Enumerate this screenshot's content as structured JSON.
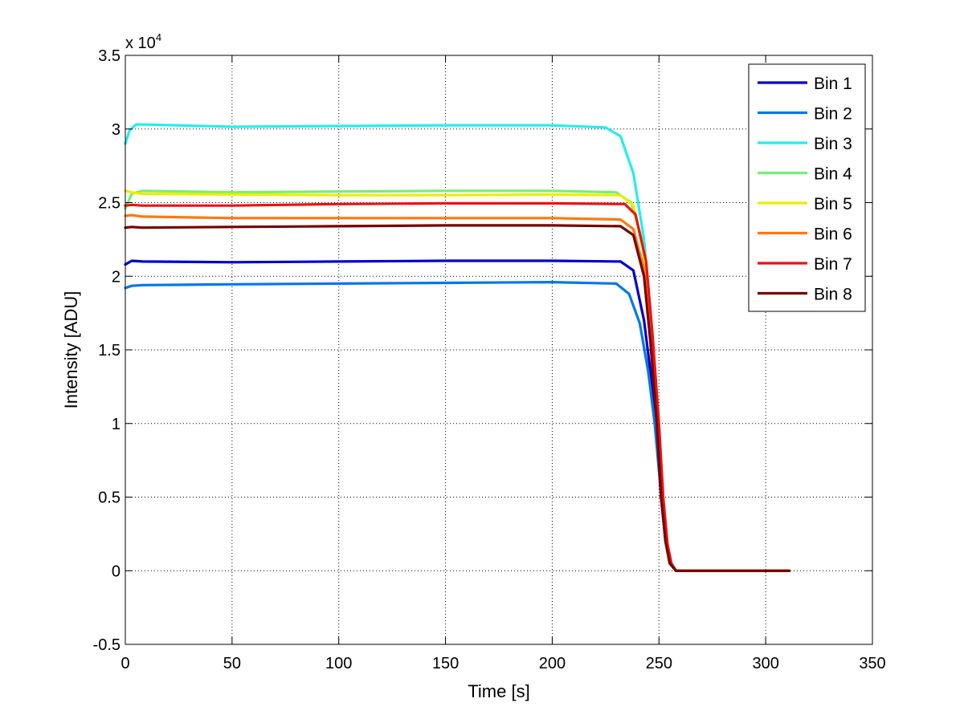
{
  "chart_data": {
    "type": "line",
    "xlabel": "Time [s]",
    "ylabel": "Intensity [ADU]",
    "xlim": [
      0,
      350
    ],
    "ylim": [
      -5000,
      35000
    ],
    "exponent_label": "x 10",
    "exponent_power": "4",
    "x_ticks": [
      0,
      50,
      100,
      150,
      200,
      250,
      300,
      350
    ],
    "y_ticks": [
      {
        "value": -5000,
        "label": "-0.5"
      },
      {
        "value": 0,
        "label": "0"
      },
      {
        "value": 5000,
        "label": "0.5"
      },
      {
        "value": 10000,
        "label": "1"
      },
      {
        "value": 15000,
        "label": "1.5"
      },
      {
        "value": 20000,
        "label": "2"
      },
      {
        "value": 25000,
        "label": "2.5"
      },
      {
        "value": 30000,
        "label": "3"
      },
      {
        "value": 35000,
        "label": "3.5"
      }
    ],
    "grid": true,
    "legend_position": "top-right",
    "series": [
      {
        "name": "Bin 1",
        "color": "#0000cc",
        "x": [
          0,
          3,
          8,
          50,
          100,
          150,
          200,
          232,
          238,
          243,
          246,
          249,
          251,
          253,
          255,
          258,
          311
        ],
        "y": [
          20800,
          21050,
          21000,
          20950,
          21000,
          21050,
          21050,
          21000,
          20400,
          17000,
          13500,
          9000,
          5000,
          2200,
          700,
          0,
          0
        ]
      },
      {
        "name": "Bin 2",
        "color": "#0077ee",
        "x": [
          0,
          3,
          8,
          50,
          100,
          150,
          200,
          230,
          236,
          241,
          245,
          248,
          250.5,
          253,
          255,
          258,
          311
        ],
        "y": [
          19200,
          19350,
          19400,
          19450,
          19500,
          19550,
          19600,
          19500,
          18800,
          16800,
          13500,
          10000,
          6000,
          2500,
          700,
          0,
          0
        ]
      },
      {
        "name": "Bin 3",
        "color": "#22eeee",
        "x": [
          0,
          2,
          5,
          10,
          50,
          100,
          150,
          200,
          225,
          232,
          238,
          243,
          246,
          249,
          251,
          253,
          255,
          258,
          311
        ],
        "y": [
          29000,
          29900,
          30300,
          30300,
          30150,
          30200,
          30250,
          30250,
          30100,
          29500,
          27000,
          22500,
          17500,
          11000,
          5500,
          2200,
          500,
          0,
          0
        ]
      },
      {
        "name": "Bin 4",
        "color": "#77ee77",
        "x": [
          0,
          3,
          8,
          50,
          100,
          150,
          200,
          230,
          237,
          242,
          246,
          249,
          251,
          253,
          255,
          258,
          311
        ],
        "y": [
          24600,
          25600,
          25800,
          25700,
          25750,
          25800,
          25800,
          25700,
          25000,
          22500,
          17000,
          11000,
          5500,
          2200,
          600,
          0,
          0
        ]
      },
      {
        "name": "Bin 5",
        "color": "#eeee00",
        "x": [
          0,
          3,
          8,
          50,
          100,
          150,
          200,
          232,
          238,
          243,
          247,
          250,
          252,
          254,
          256,
          258,
          311
        ],
        "y": [
          25800,
          25700,
          25600,
          25550,
          25500,
          25500,
          25550,
          25500,
          24800,
          21500,
          16000,
          9500,
          4800,
          1800,
          400,
          0,
          0
        ]
      },
      {
        "name": "Bin 6",
        "color": "#ff7711",
        "x": [
          0,
          3,
          8,
          50,
          100,
          150,
          200,
          232,
          238,
          243,
          246,
          249,
          251,
          253,
          255,
          258,
          311
        ],
        "y": [
          24100,
          24150,
          24050,
          23950,
          23950,
          23950,
          23950,
          23850,
          23200,
          20500,
          16000,
          10500,
          5500,
          2200,
          600,
          0,
          0
        ]
      },
      {
        "name": "Bin 7",
        "color": "#ee1111",
        "x": [
          0,
          3,
          8,
          50,
          100,
          150,
          200,
          234,
          239,
          244,
          247,
          250,
          252,
          254,
          256,
          258,
          311
        ],
        "y": [
          24800,
          24850,
          24800,
          24800,
          24900,
          24950,
          24950,
          24900,
          24200,
          21000,
          16000,
          10000,
          5000,
          1800,
          400,
          0,
          0
        ]
      },
      {
        "name": "Bin 8",
        "color": "#770000",
        "x": [
          0,
          3,
          8,
          50,
          100,
          150,
          200,
          232,
          238,
          243,
          246,
          249,
          251,
          253,
          255,
          258,
          311
        ],
        "y": [
          23300,
          23350,
          23300,
          23350,
          23400,
          23450,
          23450,
          23400,
          22800,
          20000,
          15500,
          10000,
          5000,
          2000,
          500,
          0,
          0
        ]
      }
    ]
  }
}
